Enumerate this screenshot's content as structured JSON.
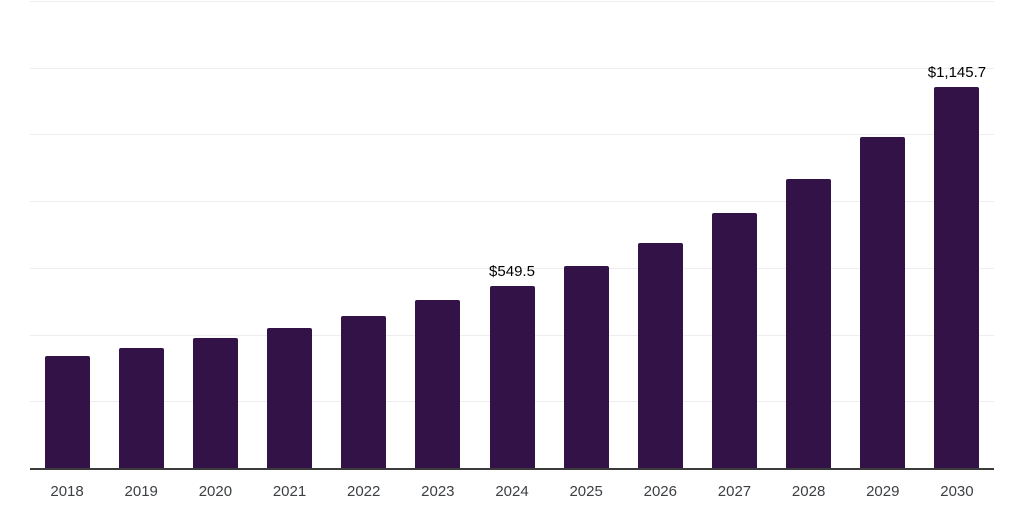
{
  "chart_data": {
    "type": "bar",
    "title": "",
    "xlabel": "",
    "ylabel": "",
    "categories": [
      "2018",
      "2019",
      "2020",
      "2021",
      "2022",
      "2023",
      "2024",
      "2025",
      "2026",
      "2027",
      "2028",
      "2029",
      "2030"
    ],
    "values": [
      340,
      364,
      394,
      423,
      460,
      506,
      549.5,
      610,
      679,
      768,
      869,
      996,
      1145.7
    ],
    "data_labels": [
      "",
      "",
      "",
      "",
      "",
      "",
      "$549.5",
      "",
      "",
      "",
      "",
      "",
      "$1,145.7"
    ],
    "ylim": [
      0,
      1400
    ],
    "grid_interval": 200,
    "grid_on": true,
    "legend": "none",
    "colors": {
      "bar": "#331247",
      "gridline": "#eeeef1",
      "axis": "#3b3b3b",
      "tick_label": "#3c4043",
      "value_label": "#000000",
      "background": "#ffffff"
    }
  }
}
